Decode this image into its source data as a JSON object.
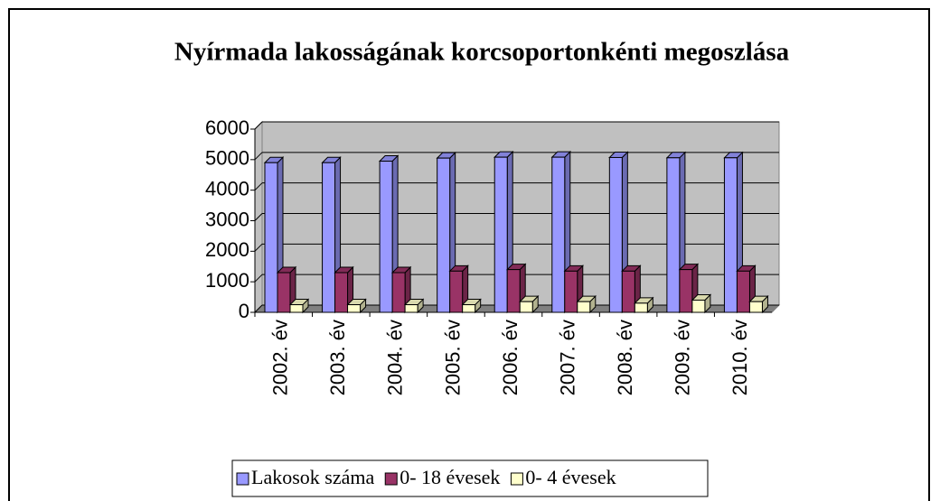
{
  "chart_data": {
    "type": "bar3d",
    "title": "Nyírmada lakosságának korcsoportonkénti megoszlása",
    "categories": [
      "2002. év",
      "2003. év",
      "2004. év",
      "2005. év",
      "2006. év",
      "2007. év",
      "2008. év",
      "2009. év",
      "2010. év"
    ],
    "series": [
      {
        "name": "Lakosok száma",
        "color": "#9999ff",
        "values": [
          4900,
          4900,
          4950,
          5050,
          5080,
          5080,
          5070,
          5060,
          5060
        ]
      },
      {
        "name": "0- 18 évesek",
        "color": "#993366",
        "values": [
          1300,
          1300,
          1300,
          1350,
          1400,
          1350,
          1350,
          1400,
          1350
        ]
      },
      {
        "name": "0- 4 évesek",
        "color": "#ffffcc",
        "values": [
          250,
          250,
          250,
          250,
          350,
          350,
          300,
          400,
          350
        ]
      }
    ],
    "ylim": [
      0,
      6000
    ],
    "yticks": [
      0,
      1000,
      2000,
      3000,
      4000,
      5000,
      6000
    ],
    "grid": true,
    "legend": "bottom"
  }
}
